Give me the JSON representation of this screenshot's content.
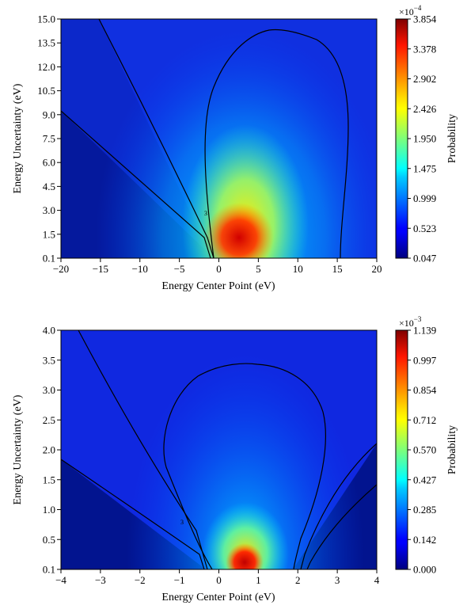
{
  "chart_data": [
    {
      "type": "heatmap",
      "xlabel": "Energy Center Point (eV)",
      "ylabel": "Energy Uncertainty (eV)",
      "xlim": [
        -20,
        20
      ],
      "ylim": [
        0.1,
        15.0
      ],
      "xticks": [
        "−20",
        "−15",
        "−10",
        "−5",
        "0",
        "5",
        "10",
        "15",
        "20"
      ],
      "yticks": [
        "0.1",
        "1.5",
        "3.0",
        "4.5",
        "6.0",
        "7.5",
        "9.0",
        "10.5",
        "12.0",
        "13.5",
        "15.0"
      ],
      "colorbar": {
        "label": "Probability",
        "multiplier": "×10",
        "exponent": "−4",
        "ticks": [
          "0.047",
          "0.523",
          "0.999",
          "1.475",
          "1.950",
          "2.426",
          "2.902",
          "3.378",
          "3.854"
        ]
      },
      "contour_labels": [
        "3"
      ],
      "peak": {
        "x": 2.5,
        "y": 1.0
      }
    },
    {
      "type": "heatmap",
      "xlabel": "Energy Center Point (eV)",
      "ylabel": "Energy Uncertainty (eV)",
      "xlim": [
        -4,
        4
      ],
      "ylim": [
        0.1,
        4.0
      ],
      "xticks": [
        "−4",
        "−3",
        "−2",
        "−1",
        "0",
        "1",
        "2",
        "3",
        "4"
      ],
      "yticks": [
        "0.1",
        "0.5",
        "1.0",
        "1.5",
        "2.0",
        "2.5",
        "3.0",
        "3.5",
        "4.0"
      ],
      "colorbar": {
        "label": "Probability",
        "multiplier": "×10",
        "exponent": "−3",
        "ticks": [
          "0.000",
          "0.142",
          "0.285",
          "0.427",
          "0.570",
          "0.712",
          "0.854",
          "0.997",
          "1.139"
        ]
      },
      "contour_labels": [
        "3"
      ],
      "peak": {
        "x": 0.7,
        "y": 0.2
      }
    }
  ]
}
